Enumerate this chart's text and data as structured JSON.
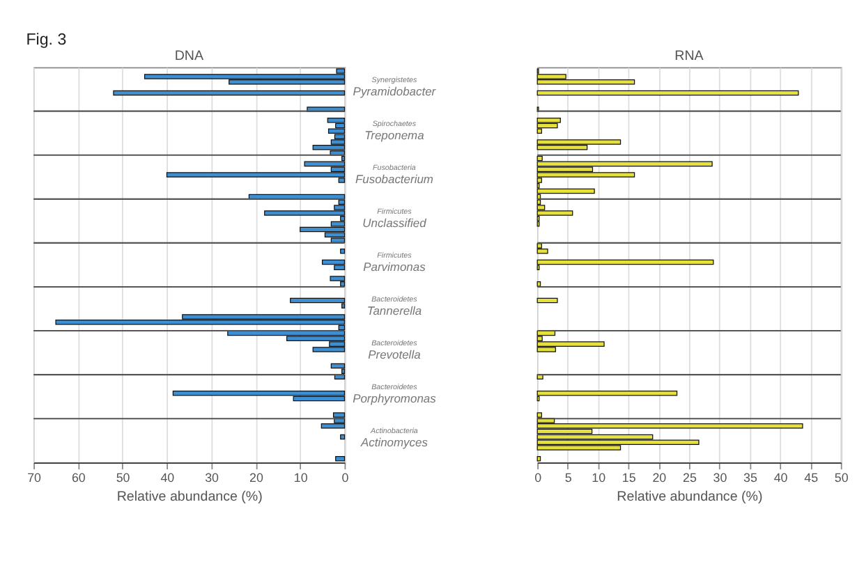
{
  "chart_data": [
    {
      "type": "bar",
      "title": "DNA",
      "orientation": "horizontal",
      "color": "#3d8fd1",
      "grid": "x",
      "xlabel": "Relative abundance (%)",
      "xlim": [
        70,
        0
      ],
      "xticks": [
        70,
        60,
        50,
        40,
        30,
        20,
        10,
        0
      ],
      "categories": [
        null,
        null,
        null,
        null,
        null,
        null,
        null,
        null,
        null,
        null,
        null,
        null,
        null,
        null,
        null,
        null,
        null,
        null,
        null,
        null,
        null,
        null,
        null,
        null,
        null,
        null,
        null,
        null,
        null,
        null,
        null,
        null,
        null,
        null,
        null,
        null,
        null,
        null,
        null,
        null,
        null,
        null,
        null,
        null,
        null,
        null,
        null,
        null,
        null,
        null,
        null,
        null,
        null,
        null,
        null,
        null,
        null,
        null,
        null,
        null,
        null,
        null,
        null,
        null,
        null,
        null,
        null,
        null,
        null,
        null,
        null,
        null
      ],
      "values": [
        1.8,
        45,
        26,
        0,
        52,
        0,
        0,
        8.4,
        0,
        3.8,
        2,
        3.6,
        2.2,
        3,
        7.1,
        3.2,
        0.6,
        9,
        3,
        40,
        1.3,
        0,
        0,
        21.5,
        1.3,
        2.3,
        18,
        0.9,
        3,
        10,
        4.4,
        3,
        0,
        0.9,
        0,
        5,
        2.3,
        0,
        3.2,
        0.9,
        0,
        0,
        12.2,
        0.6,
        0,
        36.5,
        65,
        1.3,
        26.3,
        13,
        3.4,
        7.1,
        0,
        0,
        3,
        0.6,
        2.2,
        0,
        0,
        38.6,
        11.5,
        0,
        0,
        2.5,
        2.3,
        5.2,
        0,
        0.9,
        0,
        0,
        0,
        2
      ],
      "annotations": [
        "Fig. 3",
        "Synergistetes",
        "Pyramidobacter",
        "Spirochaetes",
        "Treponema",
        "Fusobacteria",
        "Fusobacterium",
        "Firmicutes",
        "Unclassified",
        "Firmicutes",
        "Parvimonas",
        "Bacteroidetes",
        "Tannerella",
        "Bacteroidetes",
        "Prevotella",
        "Bacteroidetes",
        "Porphyromonas",
        "Actinobacteria",
        "Actinomyces"
      ]
    },
    {
      "type": "bar",
      "title": "RNA",
      "orientation": "horizontal",
      "color": "#e6e03c",
      "grid": "x",
      "xlabel": "Relative abundance (%)",
      "xlim": [
        0,
        50
      ],
      "xticks": [
        0,
        5,
        10,
        15,
        20,
        25,
        30,
        35,
        40,
        45,
        50
      ],
      "categories": [
        null,
        null,
        null,
        null,
        null,
        null,
        null,
        null,
        null,
        null,
        null,
        null,
        null,
        null,
        null,
        null,
        null,
        null,
        null,
        null,
        null,
        null,
        null,
        null,
        null,
        null,
        null,
        null,
        null,
        null,
        null,
        null,
        null,
        null,
        null,
        null,
        null,
        null,
        null,
        null,
        null,
        null,
        null,
        null,
        null,
        null,
        null,
        null,
        null,
        null,
        null,
        null,
        null,
        null,
        null,
        null,
        null,
        null,
        null,
        null,
        null,
        null,
        null,
        null,
        null,
        null,
        null,
        null,
        null,
        null,
        null,
        null
      ],
      "values": [
        0.2,
        4.7,
        16,
        0,
        43,
        0,
        0,
        0.2,
        0,
        3.8,
        3.3,
        0.7,
        0,
        13.7,
        8.2,
        0,
        0.8,
        28.8,
        9.1,
        16,
        0.7,
        0.3,
        9.4,
        0.5,
        0.5,
        1.2,
        5.8,
        0.3,
        0.3,
        0,
        0,
        0,
        0.7,
        1.7,
        0,
        29,
        0.3,
        0,
        0,
        0.5,
        0,
        0,
        3.3,
        0,
        0,
        0,
        0,
        0,
        2.9,
        0.8,
        11,
        3,
        0,
        0,
        0,
        0,
        0.9,
        0,
        0,
        23,
        0.3,
        0,
        0,
        0.7,
        2.8,
        43.7,
        9,
        19,
        26.6,
        13.7,
        0,
        0.5
      ]
    }
  ]
}
